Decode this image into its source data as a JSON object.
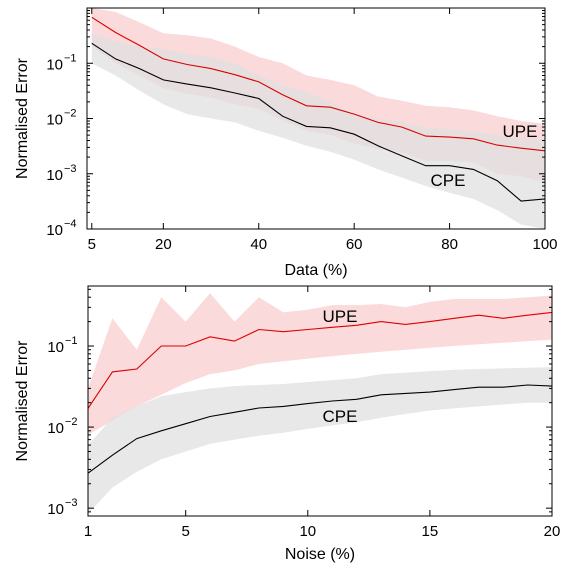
{
  "chart_data": [
    {
      "type": "line",
      "xlabel": "Data (%)",
      "ylabel": "Normalised Error",
      "y_scale": "log",
      "xlim": [
        4,
        100
      ],
      "ylim": [
        0.0001,
        1
      ],
      "xticks": [
        "5",
        "20",
        "40",
        "60",
        "80",
        "100"
      ],
      "xtick_values": [
        5,
        20,
        40,
        60,
        80,
        100
      ],
      "yticks": [
        "10",
        "10",
        "10",
        "10"
      ],
      "ytick_exponents": [
        "−4",
        "−3",
        "−2",
        "−1"
      ],
      "ytick_values": [
        0.0001,
        0.001,
        0.01,
        0.1
      ],
      "grid": false,
      "x": [
        5,
        10,
        15,
        20,
        25,
        30,
        35,
        40,
        45,
        50,
        55,
        60,
        65,
        70,
        75,
        80,
        85,
        90,
        95,
        100
      ],
      "series": [
        {
          "name": "UPE",
          "color": "#dd0000",
          "band_color": "#f9d4d4",
          "values": [
            0.68,
            0.36,
            0.21,
            0.12,
            0.095,
            0.08,
            0.062,
            0.046,
            0.027,
            0.017,
            0.016,
            0.012,
            0.0085,
            0.007,
            0.0048,
            0.0046,
            0.0043,
            0.0033,
            0.0029,
            0.0026
          ],
          "upper": [
            1.0,
            0.85,
            0.55,
            0.35,
            0.32,
            0.28,
            0.2,
            0.13,
            0.1,
            0.06,
            0.05,
            0.04,
            0.025,
            0.021,
            0.017,
            0.016,
            0.014,
            0.011,
            0.009,
            0.008
          ],
          "lower": [
            0.2,
            0.1,
            0.06,
            0.035,
            0.028,
            0.024,
            0.018,
            0.015,
            0.009,
            0.006,
            0.005,
            0.0035,
            0.0028,
            0.0024,
            0.0017,
            0.0017,
            0.0016,
            0.001,
            0.0009,
            0.0007
          ]
        },
        {
          "name": "CPE",
          "color": "#000000",
          "band_color": "#e0e0e0",
          "values": [
            0.23,
            0.12,
            0.08,
            0.05,
            0.042,
            0.036,
            0.029,
            0.023,
            0.011,
            0.0072,
            0.0068,
            0.0052,
            0.0032,
            0.0021,
            0.0014,
            0.0014,
            0.0012,
            0.00075,
            0.00032,
            0.00035
          ],
          "upper": [
            0.35,
            0.25,
            0.2,
            0.18,
            0.15,
            0.13,
            0.1,
            0.06,
            0.04,
            0.03,
            0.02,
            0.012,
            0.01,
            0.0085,
            0.0068,
            0.0064,
            0.0058,
            0.005,
            0.0045,
            0.0042
          ],
          "lower": [
            0.1,
            0.06,
            0.032,
            0.018,
            0.012,
            0.01,
            0.0085,
            0.006,
            0.0045,
            0.0032,
            0.0025,
            0.0018,
            0.0012,
            0.00085,
            0.0006,
            0.00045,
            0.00035,
            0.00022,
            0.00012,
            0.0001
          ]
        }
      ]
    },
    {
      "type": "line",
      "xlabel": "Noise (%)",
      "ylabel": "Normalised Error",
      "y_scale": "log",
      "xlim": [
        1,
        20
      ],
      "ylim": [
        0.0008,
        0.55
      ],
      "xticks": [
        "1",
        "5",
        "10",
        "15",
        "20"
      ],
      "xtick_values": [
        1,
        5,
        10,
        15,
        20
      ],
      "yticks": [
        "10",
        "10",
        "10"
      ],
      "ytick_exponents": [
        "−3",
        "−2",
        "−1"
      ],
      "ytick_values": [
        0.001,
        0.01,
        0.1
      ],
      "grid": false,
      "x": [
        1,
        2,
        3,
        4,
        5,
        6,
        7,
        8,
        9,
        10,
        11,
        12,
        13,
        14,
        15,
        16,
        17,
        18,
        19,
        20
      ],
      "series": [
        {
          "name": "UPE",
          "color": "#dd0000",
          "band_color": "#f9d4d4",
          "values": [
            0.017,
            0.048,
            0.052,
            0.1,
            0.1,
            0.13,
            0.115,
            0.16,
            0.15,
            0.16,
            0.17,
            0.18,
            0.2,
            0.185,
            0.2,
            0.22,
            0.24,
            0.22,
            0.24,
            0.26
          ],
          "upper": [
            0.03,
            0.22,
            0.09,
            0.4,
            0.2,
            0.45,
            0.2,
            0.4,
            0.26,
            0.28,
            0.32,
            0.32,
            0.33,
            0.3,
            0.35,
            0.38,
            0.38,
            0.38,
            0.4,
            0.42
          ],
          "lower": [
            0.008,
            0.012,
            0.018,
            0.025,
            0.035,
            0.045,
            0.05,
            0.06,
            0.065,
            0.07,
            0.075,
            0.08,
            0.085,
            0.09,
            0.095,
            0.1,
            0.105,
            0.11,
            0.115,
            0.12
          ]
        },
        {
          "name": "CPE",
          "color": "#000000",
          "band_color": "#e0e0e0",
          "values": [
            0.0027,
            0.0045,
            0.0072,
            0.009,
            0.011,
            0.0135,
            0.0152,
            0.0172,
            0.018,
            0.0195,
            0.021,
            0.022,
            0.025,
            0.026,
            0.027,
            0.029,
            0.031,
            0.031,
            0.033,
            0.032
          ],
          "upper": [
            0.006,
            0.013,
            0.018,
            0.024,
            0.027,
            0.03,
            0.032,
            0.033,
            0.034,
            0.036,
            0.038,
            0.04,
            0.045,
            0.047,
            0.049,
            0.051,
            0.052,
            0.053,
            0.054,
            0.055
          ],
          "lower": [
            0.00085,
            0.0018,
            0.0028,
            0.004,
            0.005,
            0.0062,
            0.007,
            0.0078,
            0.0085,
            0.0095,
            0.0105,
            0.0115,
            0.013,
            0.0145,
            0.016,
            0.017,
            0.018,
            0.019,
            0.02,
            0.02
          ]
        }
      ]
    }
  ]
}
